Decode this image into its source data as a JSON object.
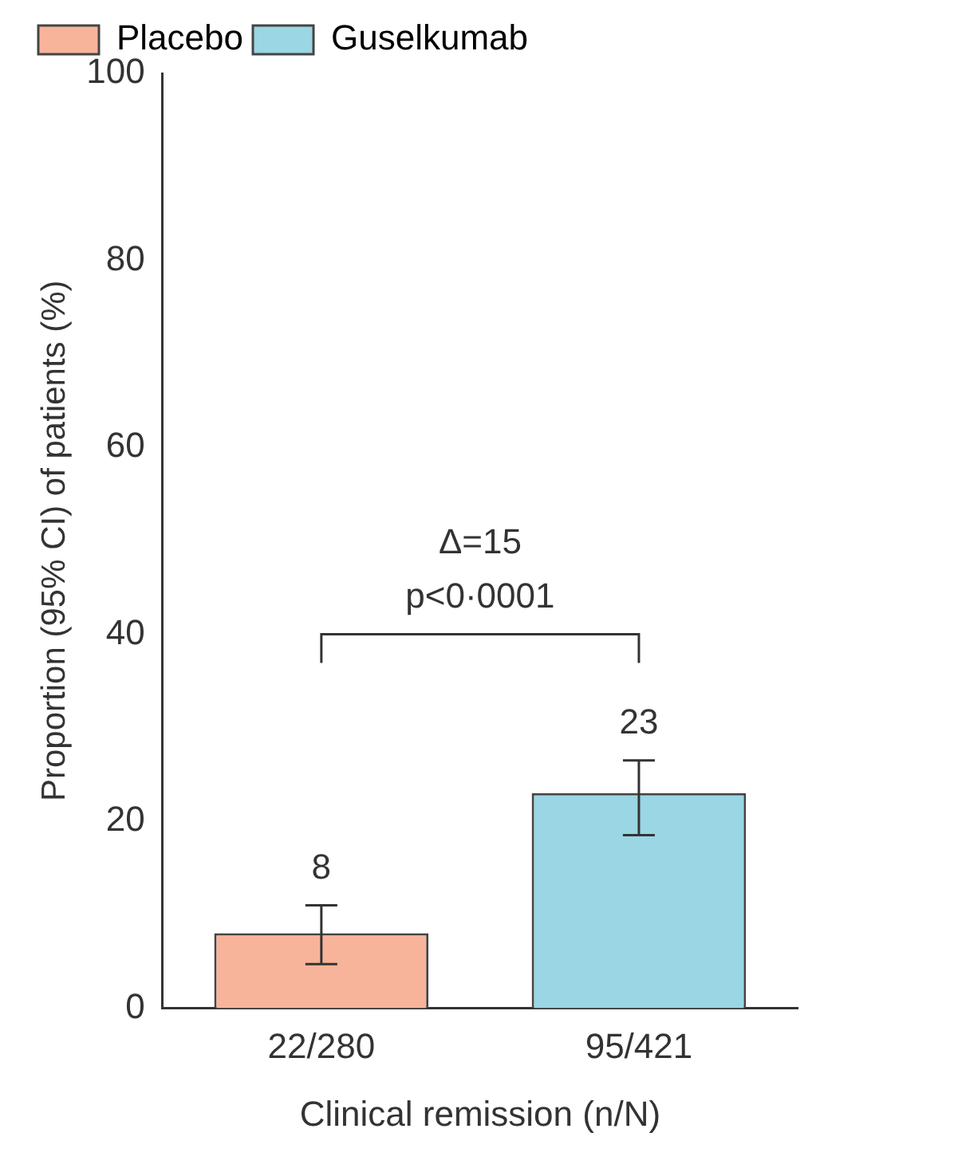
{
  "chart_data": {
    "type": "bar",
    "xlabel": "Clinical remission (n/N)",
    "ylabel": "Proportion (95% CI) of patients (%)",
    "categories": [
      "22/280",
      "95/421"
    ],
    "series": [
      {
        "name": "Placebo",
        "color": "#f8b49b",
        "values": [
          8,
          null
        ],
        "errors": [
          [
            4.7,
            11
          ],
          null
        ]
      },
      {
        "name": "Guselkumab",
        "color": "#9ad6e4",
        "values": [
          null,
          23
        ],
        "errors": [
          null,
          [
            18.5,
            26.5
          ]
        ]
      }
    ],
    "ylim": [
      0,
      100
    ],
    "yticks": [
      0,
      20,
      40,
      60,
      80,
      100
    ],
    "grid": false,
    "legend": "top left",
    "data_labels": true,
    "annotations": [
      "Δ=15",
      "p<0·0001"
    ]
  }
}
